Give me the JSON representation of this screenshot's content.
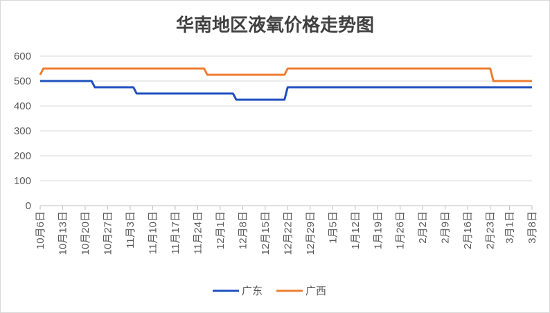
{
  "chart_data": {
    "type": "line",
    "title": "华南地区液氧价格走势图",
    "xlabel": "",
    "ylabel": "",
    "ylim": [
      0,
      600
    ],
    "yticks": [
      0,
      100,
      200,
      300,
      400,
      500,
      600
    ],
    "grid": true,
    "legend_position": "bottom",
    "x_tick_labels": [
      "10月6日",
      "10月13日",
      "10月20日",
      "10月27日",
      "11月3日",
      "11月10日",
      "11月17日",
      "11月24日",
      "12月1日",
      "12月8日",
      "12月15日",
      "12月22日",
      "12月29日",
      "1月5日",
      "1月12日",
      "1月19日",
      "1月26日",
      "2月2日",
      "2月9日",
      "2月16日",
      "2月23日",
      "3月1日",
      "3月8日"
    ],
    "x": [
      "10月6日",
      "10月7日",
      "10月22日",
      "10月23日",
      "11月4日",
      "11月5日",
      "11月26日",
      "11月27日",
      "12月5日",
      "12月6日",
      "12月21日",
      "12月22日",
      "2月23日",
      "2月24日",
      "3月8日"
    ],
    "series": [
      {
        "name": "广东",
        "color": "#1f4fbf",
        "values": [
          500,
          500,
          500,
          475,
          475,
          450,
          450,
          450,
          450,
          425,
          425,
          475,
          475,
          475,
          475
        ]
      },
      {
        "name": "广西",
        "color": "#ed7d31",
        "values": [
          525,
          550,
          550,
          550,
          550,
          550,
          550,
          525,
          525,
          525,
          525,
          550,
          550,
          500,
          500
        ]
      }
    ]
  }
}
